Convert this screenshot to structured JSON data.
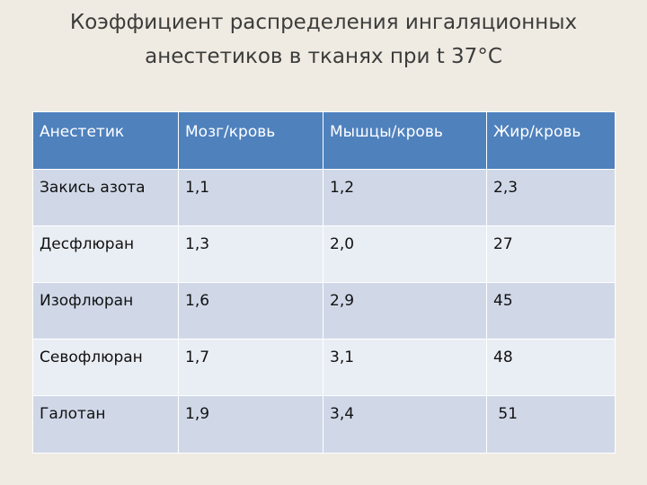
{
  "title": {
    "line1": "Коэффициент распределения ингаляционных",
    "line2": "анестетиков в тканях при t 37°С"
  },
  "table": {
    "headers": [
      "Анестетик",
      "Мозг/кровь",
      "Мышцы/кровь",
      "Жир/кровь"
    ],
    "rows": [
      [
        "Закись азота",
        "1,1",
        "1,2",
        "2,3"
      ],
      [
        "Десфлюран",
        "1,3",
        "2,0",
        "27"
      ],
      [
        "Изофлюран",
        "1,6",
        "2,9",
        "45"
      ],
      [
        "Севофлюран",
        "1,7",
        "3,1",
        "48"
      ],
      [
        "Галотан",
        "1,9",
        "3,4",
        " 51"
      ]
    ]
  },
  "colors": {
    "background": "#efebe2",
    "header_fill": "#4f81bd",
    "row_odd_fill": "#d0d8e8",
    "row_even_fill": "#e9edf4"
  }
}
